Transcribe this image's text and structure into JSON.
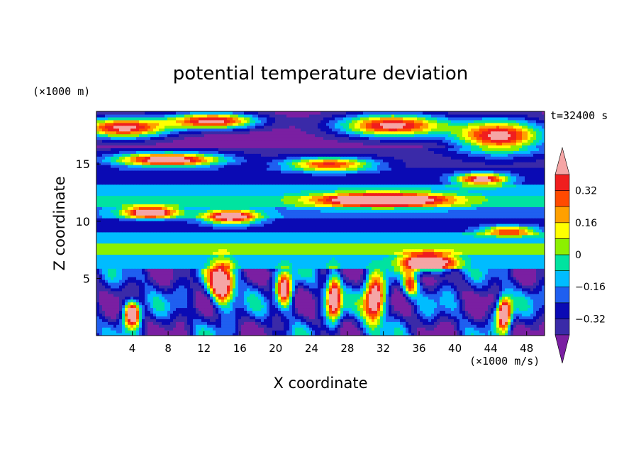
{
  "chart_data": {
    "type": "heatmap",
    "title": "potential temperature deviation",
    "xlabel": "X coordinate",
    "ylabel": "Z coordinate",
    "x_unit": "(×1000 m/s)",
    "y_unit": "(×1000 m)",
    "time_label": "t=32400 s",
    "xlim": [
      0,
      50
    ],
    "ylim": [
      0,
      19.6
    ],
    "x_ticks": [
      4,
      8,
      12,
      16,
      20,
      24,
      28,
      32,
      36,
      40,
      44,
      48
    ],
    "y_ticks": [
      5,
      10,
      15
    ],
    "colorbar": {
      "levels": [
        -0.4,
        -0.32,
        -0.24,
        -0.16,
        -0.08,
        0,
        0.08,
        0.16,
        0.24,
        0.32,
        0.4
      ],
      "tick_labels": [
        "0.32",
        "0.16",
        "0",
        "−0.16",
        "−0.32"
      ],
      "tick_values": [
        0.32,
        0.16,
        0,
        -0.16,
        -0.32
      ],
      "colors": [
        "#7a1fa2",
        "#3a2aa8",
        "#0a0ab4",
        "#1f5ff0",
        "#00bcff",
        "#00e3a0",
        "#8cf000",
        "#ffff00",
        "#ffa000",
        "#ff4a00",
        "#f01e1e",
        "#f5a5a5"
      ],
      "extend": "both"
    }
  }
}
